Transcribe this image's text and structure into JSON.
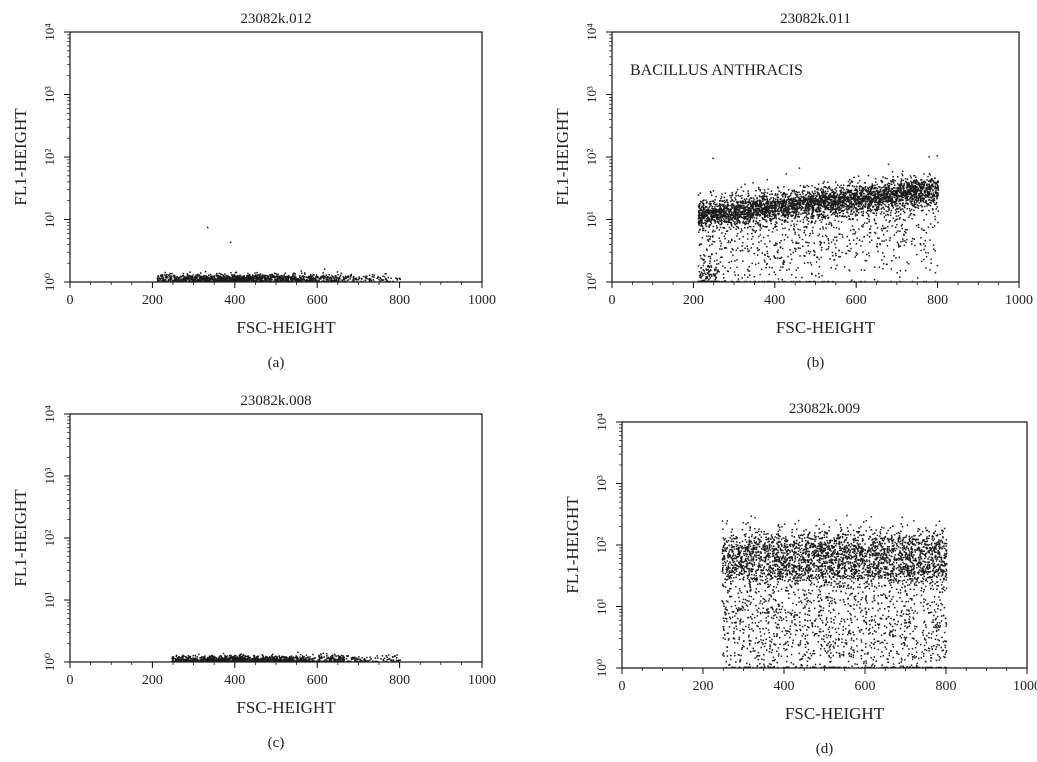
{
  "chart_data": [
    {
      "type": "scatter",
      "panel": "(a)",
      "title": "23082k.012",
      "annotation": "",
      "xlabel": "FSC-HEIGHT",
      "ylabel": "FL1-HEIGHT",
      "xlim": [
        0,
        1000
      ],
      "ylim": [
        1,
        10000
      ],
      "yscale": "log",
      "xticks": [
        "0",
        "200",
        "400",
        "600",
        "800",
        "1000"
      ],
      "yticks": [
        "10⁰",
        "10¹",
        "10²",
        "10³",
        "10⁴"
      ],
      "grid": false,
      "clusters": [
        {
          "x_range": [
            210,
            800
          ],
          "y_center": 1.15,
          "y_spread_log10": 0.04,
          "count": 1400,
          "density_peak_x": 420
        },
        {
          "x_range": [
            330,
            350
          ],
          "y_center": 7.5,
          "y_spread_log10": 0.01,
          "count": 1
        },
        {
          "x_range": [
            380,
            390
          ],
          "y_center": 4.5,
          "y_spread_log10": 0.01,
          "count": 1
        }
      ]
    },
    {
      "type": "scatter",
      "panel": "(b)",
      "title": "23082k.011",
      "annotation": "BACILLUS ANTHRACIS",
      "xlabel": "FSC-HEIGHT",
      "ylabel": "FL1-HEIGHT",
      "xlim": [
        0,
        1000
      ],
      "ylim": [
        1,
        10000
      ],
      "yscale": "log",
      "xticks": [
        "0",
        "200",
        "400",
        "600",
        "800",
        "1000"
      ],
      "yticks": [
        "10⁰",
        "10¹",
        "10²",
        "10³",
        "10⁴"
      ],
      "grid": false,
      "clusters": [
        {
          "x_range": [
            210,
            800
          ],
          "y_start": 12,
          "y_end": 30,
          "y_spread_log10": 0.12,
          "count": 3500
        },
        {
          "x_range": [
            210,
            800
          ],
          "y_start": 3,
          "y_end": 8,
          "y_spread_log10": 0.45,
          "count": 800
        },
        {
          "x_range": [
            210,
            260
          ],
          "y_start": 1,
          "y_end": 1.5,
          "y_spread_log10": 0.15,
          "count": 120
        }
      ]
    },
    {
      "type": "scatter",
      "panel": "(c)",
      "title": "23082k.008",
      "annotation": "",
      "xlabel": "FSC-HEIGHT",
      "ylabel": "FL1-HEIGHT",
      "xlim": [
        0,
        1000
      ],
      "ylim": [
        1,
        10000
      ],
      "yscale": "log",
      "xticks": [
        "0",
        "200",
        "400",
        "600",
        "800",
        "1000"
      ],
      "yticks": [
        "10⁰",
        "10¹",
        "10²",
        "10³",
        "10⁴"
      ],
      "grid": false,
      "clusters": [
        {
          "x_range": [
            245,
            800
          ],
          "y_center": 1.1,
          "y_spread_log10": 0.04,
          "count": 1400,
          "density_peak_x": 420
        }
      ]
    },
    {
      "type": "scatter",
      "panel": "(d)",
      "title": "23082k.009",
      "annotation": "",
      "xlabel": "FSC-HEIGHT",
      "ylabel": "FL1-HEIGHT",
      "xlim": [
        0,
        1000
      ],
      "ylim": [
        1,
        10000
      ],
      "yscale": "log",
      "xticks": [
        "0",
        "200",
        "400",
        "600",
        "800",
        "1000"
      ],
      "yticks": [
        "10⁰",
        "10¹",
        "10²",
        "10³",
        "10⁴"
      ],
      "grid": false,
      "clusters": [
        {
          "x_range": [
            245,
            800
          ],
          "y_center": 90,
          "y_spread_log10": 0.16,
          "count": 1600
        },
        {
          "x_range": [
            245,
            800
          ],
          "y_center": 40,
          "y_spread_log10": 0.14,
          "count": 1300
        },
        {
          "x_range": [
            245,
            800
          ],
          "y_center": 8,
          "y_spread_log10": 0.35,
          "count": 900
        },
        {
          "x_range": [
            245,
            800
          ],
          "y_center": 1.5,
          "y_spread_log10": 0.3,
          "count": 500
        }
      ]
    }
  ]
}
